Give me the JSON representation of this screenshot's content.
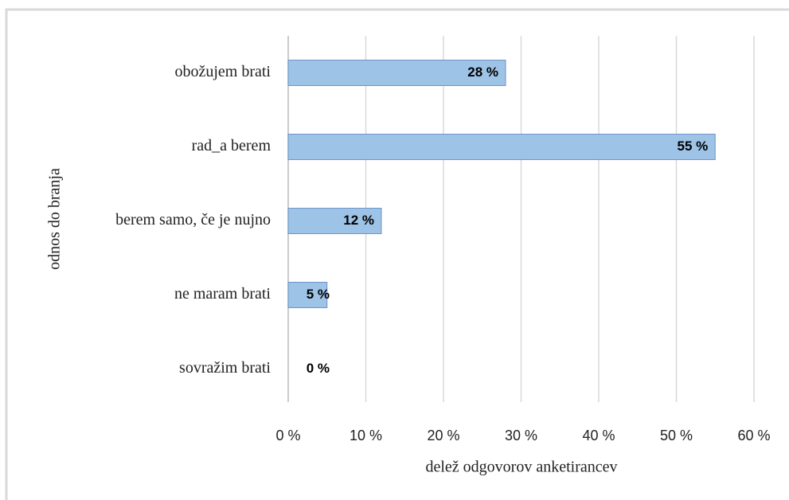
{
  "chart_data": {
    "type": "bar",
    "orientation": "horizontal",
    "xlabel": "delež odgovorov anketirancev",
    "ylabel": "odnos do branja",
    "categories": [
      "obožujem brati",
      "rad_a berem",
      "berem samo, če je nujno",
      "ne maram brati",
      "sovražim brati"
    ],
    "values": [
      28,
      55,
      12,
      5,
      0
    ],
    "value_labels": [
      "28 %",
      "55 %",
      "12 %",
      "5 %",
      "0 %"
    ],
    "color": "#9dc3e6",
    "edge_color": "#6f94c9",
    "xlim": [
      0,
      60
    ],
    "xticks": [
      {
        "value": 0,
        "label": "0 %"
      },
      {
        "value": 10,
        "label": "10 %"
      },
      {
        "value": 20,
        "label": "20 %"
      },
      {
        "value": 30,
        "label": "30 %"
      },
      {
        "value": 40,
        "label": "40 %"
      },
      {
        "value": 50,
        "label": "50 %"
      },
      {
        "value": 60,
        "label": "60 %"
      }
    ],
    "grid": true
  }
}
